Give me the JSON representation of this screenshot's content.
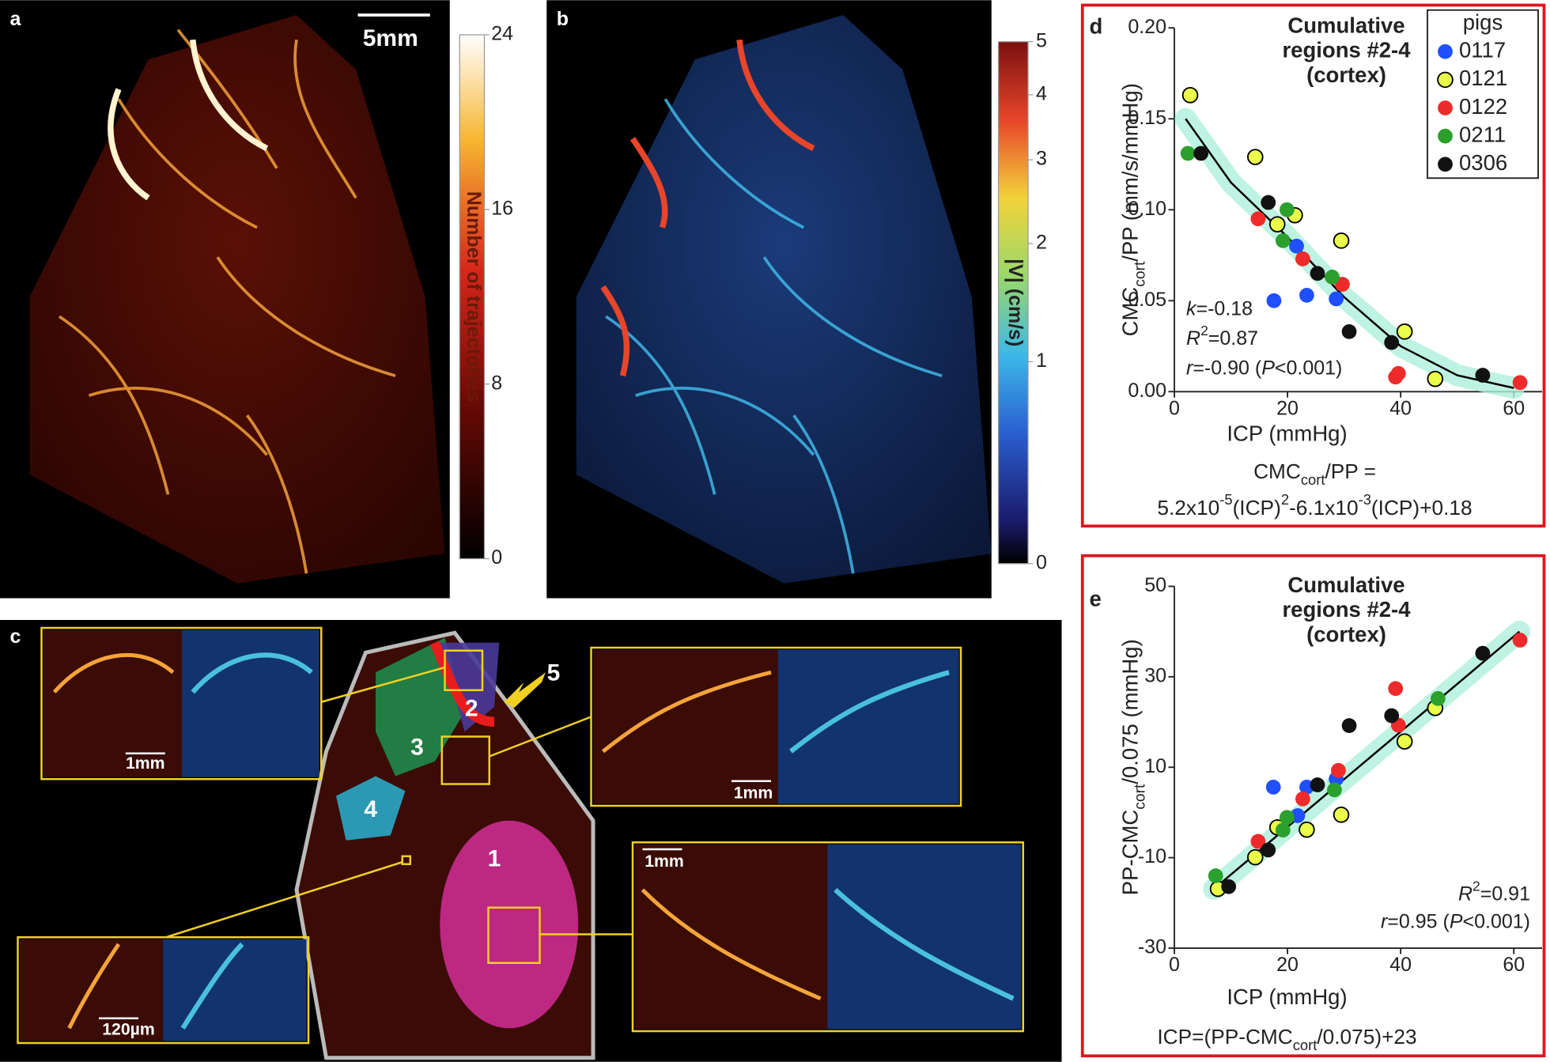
{
  "panels": {
    "a": {
      "letter": "a",
      "scale_bar": "5mm",
      "colorbar": {
        "label": "Number of trajectories",
        "lim": [
          0,
          24
        ],
        "ticks": [
          0,
          8,
          16,
          24
        ]
      }
    },
    "b": {
      "letter": "b",
      "colorbar": {
        "label": "|V| (cm/s)",
        "lim": [
          0,
          5
        ],
        "ticks": [
          0,
          1,
          2,
          3,
          4,
          5
        ],
        "scale": "log1p"
      }
    },
    "c": {
      "letter": "c",
      "regions": [
        "1",
        "2",
        "3",
        "4",
        "5"
      ],
      "scale_bars": [
        "1mm",
        "1mm",
        "1mm",
        "120µm"
      ]
    }
  },
  "chart_data": [
    {
      "type": "scatter",
      "panel": "d",
      "title": [
        "Cumulative",
        "regions #2-4",
        "(cortex)"
      ],
      "xlabel": "ICP (mmHg)",
      "ylabel": [
        {
          "t": "CMC"
        },
        {
          "t": "cort",
          "s": "sub"
        },
        {
          "t": "/PP (mm/s/mmHg)"
        }
      ],
      "xlim": [
        0,
        65
      ],
      "xticks": [
        0,
        20,
        40,
        60
      ],
      "ylim": [
        0,
        0.2
      ],
      "yticks": [
        {
          "value": 0,
          "label": "0.00"
        },
        {
          "value": 0.05,
          "label": "0.05"
        },
        {
          "value": 0.1,
          "label": "0.10"
        },
        {
          "value": 0.15,
          "label": "0.15"
        },
        {
          "value": 0.2,
          "label": "0.20"
        }
      ],
      "legend": "top-right",
      "legend_title": "pigs",
      "series": [
        {
          "name": "0117",
          "color": "#1f4fff",
          "x": [
            17.6,
            21.6,
            23.4,
            28.6
          ],
          "values": [
            0.05,
            0.08,
            0.053,
            0.051
          ]
        },
        {
          "name": "0121",
          "color": "#eaff4a",
          "edgecolor": "#000000",
          "x": [
            2.8,
            14.3,
            18.2,
            21.3,
            29.5,
            40.7,
            46.1
          ],
          "values": [
            0.163,
            0.129,
            0.092,
            0.097,
            0.083,
            0.033,
            0.007
          ]
        },
        {
          "name": "0122",
          "color": "#ee2a2a",
          "x": [
            14.8,
            22.7,
            29.7,
            39.1,
            39.6,
            61.1
          ],
          "values": [
            0.095,
            0.073,
            0.059,
            0.008,
            0.01,
            0.005
          ]
        },
        {
          "name": "0211",
          "color": "#2ca02c",
          "x": [
            2.4,
            19.9,
            19.2,
            27.9
          ],
          "values": [
            0.131,
            0.1,
            0.083,
            0.063
          ]
        },
        {
          "name": "0306",
          "color": "#111111",
          "x": [
            4.7,
            16.6,
            25.3,
            30.9,
            38.4,
            54.5
          ],
          "values": [
            0.131,
            0.104,
            0.065,
            0.033,
            0.027,
            0.009
          ]
        }
      ],
      "fit": {
        "color": "#000000",
        "band_color": "#aef0dc",
        "x": [
          2,
          10,
          20,
          30,
          40,
          50,
          60
        ],
        "values": [
          0.15,
          0.115,
          0.085,
          0.052,
          0.025,
          0.009,
          0.002
        ]
      },
      "stats": [
        [
          {
            "t": "k",
            "s": "i"
          },
          {
            "t": "=-0.18"
          }
        ],
        [
          {
            "t": "R",
            "s": "i"
          },
          {
            "t": "2",
            "s": "sup"
          },
          {
            "t": "=0.87"
          }
        ],
        [
          {
            "t": "r",
            "s": "i"
          },
          {
            "t": "=-0.90 ("
          },
          {
            "t": "P",
            "s": "i"
          },
          {
            "t": "<0.001)"
          }
        ]
      ],
      "formula": [
        [
          {
            "t": "CMC"
          },
          {
            "t": "cort",
            "s": "sub"
          },
          {
            "t": "/PP ="
          }
        ],
        [
          {
            "t": "5.2x10"
          },
          {
            "t": "-5",
            "s": "sup"
          },
          {
            "t": "(ICP)"
          },
          {
            "t": "2",
            "s": "sup"
          },
          {
            "t": "-6.1x10"
          },
          {
            "t": "-3",
            "s": "sup"
          },
          {
            "t": "(ICP)+0.18"
          }
        ]
      ]
    },
    {
      "type": "scatter",
      "panel": "e",
      "title": [
        "Cumulative",
        "regions #2-4",
        "(cortex)"
      ],
      "xlabel": "ICP (mmHg)",
      "ylabel": [
        {
          "t": "PP-CMC"
        },
        {
          "t": "cort",
          "s": "sub"
        },
        {
          "t": "/0.075 (mmHg)"
        }
      ],
      "xlim": [
        0,
        65
      ],
      "xticks": [
        0,
        20,
        40,
        60
      ],
      "ylim": [
        -30,
        50
      ],
      "yticks": [
        -30,
        -10,
        10,
        30,
        50
      ],
      "series": [
        {
          "name": "0117",
          "color": "#1f4fff",
          "x": [
            17.5,
            23.4,
            21.8,
            28.6
          ],
          "values": [
            5.6,
            5.6,
            -0.7,
            7.4
          ]
        },
        {
          "name": "0121",
          "color": "#eaff4a",
          "edgecolor": "#000000",
          "x": [
            7.7,
            14.3,
            18.2,
            23.4,
            29.5,
            40.7,
            46.1
          ],
          "values": [
            -16.9,
            -9.9,
            -3.3,
            -3.8,
            -0.5,
            15.7,
            23.1
          ]
        },
        {
          "name": "0122",
          "color": "#ee2a2a",
          "x": [
            14.8,
            22.7,
            29.0,
            39.1,
            39.6,
            61.1
          ],
          "values": [
            -6.4,
            3.0,
            9.3,
            27.4,
            19.3,
            38.1
          ]
        },
        {
          "name": "0211",
          "color": "#2ca02c",
          "x": [
            7.3,
            19.9,
            19.2,
            28.3,
            46.6
          ],
          "values": [
            -14.0,
            -1.1,
            -3.9,
            5.0,
            25.2
          ]
        },
        {
          "name": "0306",
          "color": "#111111",
          "x": [
            9.6,
            16.6,
            25.3,
            30.9,
            38.4,
            54.5
          ],
          "values": [
            -16.4,
            -8.3,
            6.1,
            19.2,
            21.4,
            35.2
          ]
        }
      ],
      "fit": {
        "color": "#000000",
        "band_color": "#aef0dc",
        "x": [
          7,
          61
        ],
        "values": [
          -16.9,
          40
        ]
      },
      "stats": [
        [
          {
            "t": "R",
            "s": "i"
          },
          {
            "t": "2",
            "s": "sup"
          },
          {
            "t": "=0.91"
          }
        ],
        [
          {
            "t": "r",
            "s": "i"
          },
          {
            "t": "=0.95 ("
          },
          {
            "t": "P",
            "s": "i"
          },
          {
            "t": "<0.001)"
          }
        ]
      ],
      "formula": [
        [
          {
            "t": "ICP=(PP-CMC"
          },
          {
            "t": "cort",
            "s": "sub"
          },
          {
            "t": "/0.075)+23"
          }
        ]
      ]
    }
  ]
}
